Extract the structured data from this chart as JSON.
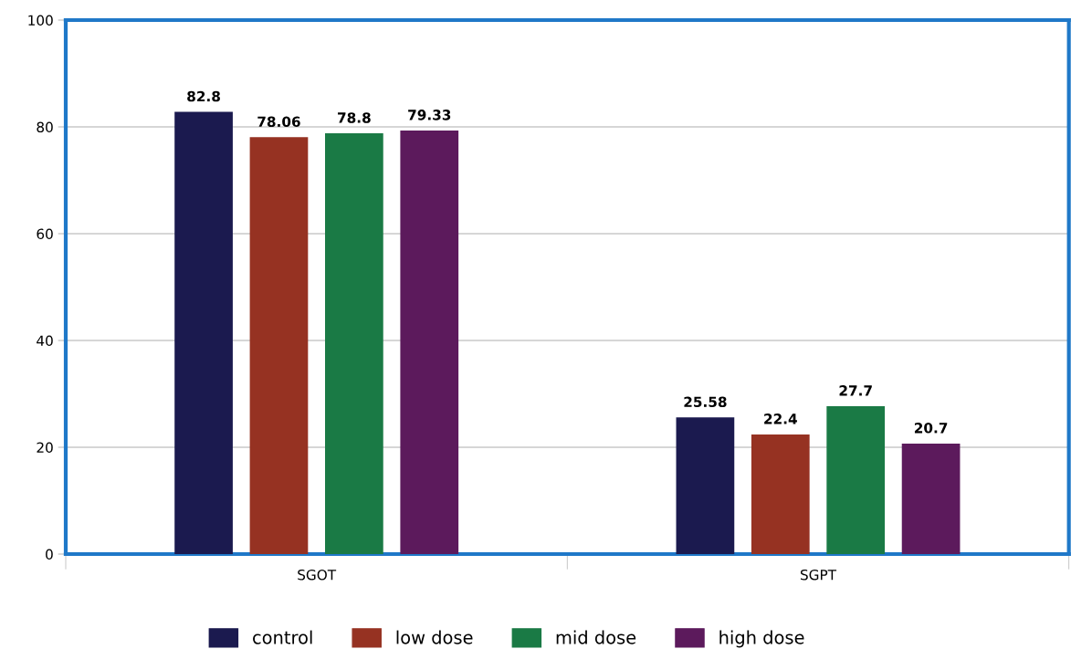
{
  "chart_data": {
    "type": "bar",
    "categories": [
      "SGOT",
      "SGPT"
    ],
    "series": [
      {
        "name": "control",
        "color": "#1b1a4f",
        "values": [
          82.8,
          25.58
        ]
      },
      {
        "name": "low dose",
        "color": "#963222",
        "values": [
          78.06,
          22.4
        ]
      },
      {
        "name": "mid dose",
        "color": "#1a7a45",
        "values": [
          78.8,
          27.7
        ]
      },
      {
        "name": "high dose",
        "color": "#5c1a5c",
        "values": [
          79.33,
          20.7
        ]
      }
    ],
    "ylim": [
      0,
      100
    ],
    "yticks": [
      0,
      20,
      40,
      60,
      80,
      100
    ],
    "grid": "y",
    "legend": "bottom",
    "data_labels": true
  }
}
